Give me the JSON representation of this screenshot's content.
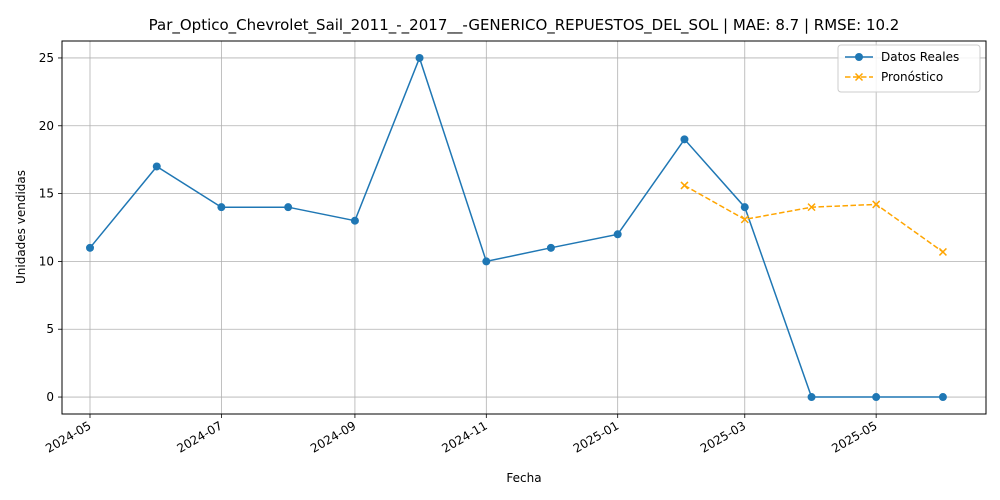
{
  "chart_data": {
    "type": "line",
    "title": "Par_Optico_Chevrolet_Sail_2011_-_2017__-GENERICO_REPUESTOS_DEL_SOL | MAE: 8.7 | RMSE: 10.2",
    "xlabel": "Fecha",
    "ylabel": "Unidades vendidas",
    "xlim": [
      "2024-04-18",
      "2025-06-21"
    ],
    "ylim": [
      -1.25,
      26.25
    ],
    "x_ticks": [
      "2024-05",
      "2024-07",
      "2024-09",
      "2024-11",
      "2025-01",
      "2025-03",
      "2025-05"
    ],
    "y_ticks": [
      0,
      5,
      10,
      15,
      20,
      25
    ],
    "grid": true,
    "legend_position": "top-right",
    "series": [
      {
        "name": "Datos Reales",
        "color": "#1f77b4",
        "marker": "circle",
        "line_style": "solid",
        "x": [
          "2024-05-01",
          "2024-06-01",
          "2024-07-01",
          "2024-08-01",
          "2024-09-01",
          "2024-10-01",
          "2024-11-01",
          "2024-12-01",
          "2025-01-01",
          "2025-02-01",
          "2025-03-01",
          "2025-04-01",
          "2025-05-01",
          "2025-06-01"
        ],
        "values": [
          11,
          17,
          14,
          14,
          13,
          25,
          10,
          11,
          12,
          19,
          14,
          0,
          0,
          0
        ]
      },
      {
        "name": "Pronóstico",
        "color": "#ffa500",
        "marker": "x",
        "line_style": "dashed",
        "x": [
          "2025-02-01",
          "2025-03-01",
          "2025-04-01",
          "2025-05-01",
          "2025-06-01"
        ],
        "values": [
          15.6,
          13.1,
          14.0,
          14.2,
          10.7
        ]
      }
    ]
  }
}
